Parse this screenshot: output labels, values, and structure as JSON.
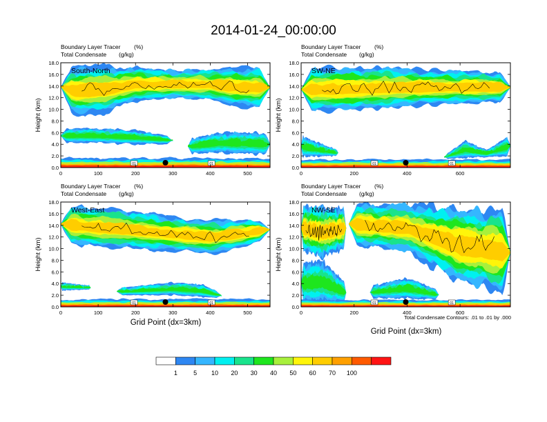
{
  "title": "2014-01-24_00:00:00",
  "y_axis_label": "Height (km)",
  "x_axis_label": "Grid Point (dx=3km)",
  "contour_note": "Total Condensate Contours: .01 to .01 by .000",
  "contour_label": "01",
  "colors": {
    "levels": [
      "#ffffff",
      "#2e87f2",
      "#35b6ff",
      "#00f0f0",
      "#19e38c",
      "#1ee61e",
      "#a8f03c",
      "#fff50a",
      "#ffcd00",
      "#ffa000",
      "#ff5a00",
      "#ff1414"
    ]
  },
  "chart_data": [
    {
      "type": "heatmap",
      "panel": "South-North",
      "subtitle_left_1": "Boundary Layer Tracer",
      "subtitle_unit_1": "(%)",
      "subtitle_left_2": "Total Condensate",
      "subtitle_unit_2": "(g/kg)",
      "xlim": [
        0,
        560
      ],
      "ylim": [
        0,
        18
      ],
      "xticks": [
        0,
        100,
        200,
        300,
        400,
        500
      ],
      "yticks": [
        "0.0",
        "2.0",
        "4.0",
        "6.0",
        "8.0",
        "10.0",
        "12.0",
        "14.0",
        "16.0",
        "18.0"
      ],
      "marker_x": 280
    },
    {
      "type": "heatmap",
      "panel": "SW-NE",
      "subtitle_left_1": "Boundary Layer Tracer",
      "subtitle_unit_1": "(%)",
      "subtitle_left_2": "Total Condensate",
      "subtitle_unit_2": "(g/kg)",
      "xlim": [
        0,
        790
      ],
      "ylim": [
        0,
        18
      ],
      "xticks": [
        0,
        200,
        400,
        600
      ],
      "yticks": [
        "0.0",
        "2.0",
        "4.0",
        "6.0",
        "8.0",
        "10.0",
        "12.0",
        "14.0",
        "16.0",
        "18.0"
      ],
      "marker_x": 395
    },
    {
      "type": "heatmap",
      "panel": "West-East",
      "subtitle_left_1": "Boundary Layer Tracer",
      "subtitle_unit_1": "(%)",
      "subtitle_left_2": "Total Condensate",
      "subtitle_unit_2": "(g/kg)",
      "xlim": [
        0,
        560
      ],
      "ylim": [
        0,
        18
      ],
      "xticks": [
        0,
        100,
        200,
        300,
        400,
        500
      ],
      "yticks": [
        "0.0",
        "2.0",
        "4.0",
        "6.0",
        "8.0",
        "10.0",
        "12.0",
        "14.0",
        "16.0",
        "18.0"
      ],
      "marker_x": 280
    },
    {
      "type": "heatmap",
      "panel": "NW-SE",
      "subtitle_left_1": "Boundary Layer Tracer",
      "subtitle_unit_1": "(%)",
      "subtitle_left_2": "Total Condensate",
      "subtitle_unit_2": "(g/kg)",
      "xlim": [
        0,
        790
      ],
      "ylim": [
        0,
        18
      ],
      "xticks": [
        0,
        200,
        400,
        600
      ],
      "yticks": [
        "0.0",
        "2.0",
        "4.0",
        "6.0",
        "8.0",
        "10.0",
        "12.0",
        "14.0",
        "16.0",
        "18.0"
      ],
      "marker_x": 395
    }
  ],
  "colorbar": {
    "labels": [
      "1",
      "5",
      "10",
      "20",
      "30",
      "40",
      "50",
      "60",
      "70",
      "100"
    ]
  }
}
